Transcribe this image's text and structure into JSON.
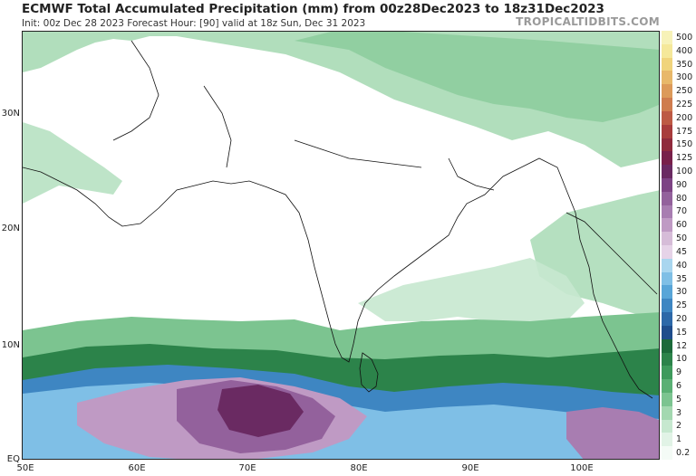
{
  "title": "ECMWF Total Accumulated Precipitation (mm) from 00z28Dec2023 to 18z31Dec2023",
  "subtitle": "Init: 00z Dec 28 2023   Forecast Hour: [90]   valid at 18z Sun, Dec 31 2023",
  "brand": "TROPICALTIDBITS.COM",
  "lat_labels": [
    {
      "label": "30N"
    },
    {
      "label": "20N"
    },
    {
      "label": "10N"
    },
    {
      "label": "EQ"
    }
  ],
  "lon_labels": [
    {
      "label": "50E"
    },
    {
      "label": "60E"
    },
    {
      "label": "70E"
    },
    {
      "label": "80E"
    },
    {
      "label": "90E"
    },
    {
      "label": "100E"
    }
  ],
  "colorbar": [
    {
      "label": "500",
      "color": "#f7f2b8"
    },
    {
      "label": "400",
      "color": "#f5e89a"
    },
    {
      "label": "350",
      "color": "#f0d47c"
    },
    {
      "label": "300",
      "color": "#e8b86a"
    },
    {
      "label": "250",
      "color": "#dc9a5a"
    },
    {
      "label": "225",
      "color": "#cf7c4e"
    },
    {
      "label": "200",
      "color": "#bd5a44"
    },
    {
      "label": "175",
      "color": "#a83c3c"
    },
    {
      "label": "150",
      "color": "#8f2a3c"
    },
    {
      "label": "125",
      "color": "#78204a"
    },
    {
      "label": "100",
      "color": "#6a2a62"
    },
    {
      "label": "90",
      "color": "#7d4384"
    },
    {
      "label": "80",
      "color": "#93619c"
    },
    {
      "label": "70",
      "color": "#a87db1"
    },
    {
      "label": "60",
      "color": "#bf9ac4"
    },
    {
      "label": "50",
      "color": "#d6bcd8"
    },
    {
      "label": "45",
      "color": "#e6d3e8"
    },
    {
      "label": "40",
      "color": "#a9d6ef"
    },
    {
      "label": "35",
      "color": "#7fbfe6"
    },
    {
      "label": "30",
      "color": "#58a5d8"
    },
    {
      "label": "25",
      "color": "#3e86c2"
    },
    {
      "label": "20",
      "color": "#2d68a8"
    },
    {
      "label": "15",
      "color": "#1f4d8c"
    },
    {
      "label": "12",
      "color": "#1c6a3a"
    },
    {
      "label": "10",
      "color": "#2c834a"
    },
    {
      "label": "9",
      "color": "#3e9a5c"
    },
    {
      "label": "6",
      "color": "#5ab074"
    },
    {
      "label": "5",
      "color": "#7cc490"
    },
    {
      "label": "3",
      "color": "#a3d8b0"
    },
    {
      "label": "2",
      "color": "#c6e8cf"
    },
    {
      "label": "1",
      "color": "#e1f3e6"
    },
    {
      "label": "0.2",
      "color": "#f4fbf6"
    }
  ]
}
